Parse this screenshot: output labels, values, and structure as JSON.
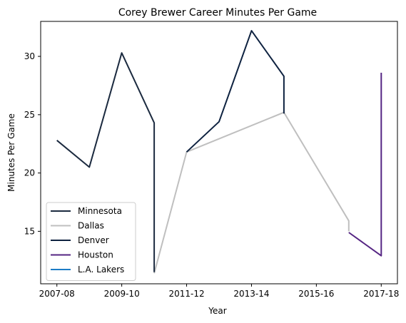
{
  "chart_data": {
    "type": "line",
    "title": "Corey Brewer Career Minutes Per Game",
    "xlabel": "Year",
    "ylabel": "Minutes Per Game",
    "x_ticks": [
      "2007-08",
      "2009-10",
      "2011-12",
      "2013-14",
      "2015-16",
      "2017-18"
    ],
    "y_ticks": [
      15,
      20,
      25,
      30
    ],
    "xlim": [
      -0.5,
      10.5
    ],
    "ylim": [
      10.5,
      33.0
    ],
    "legend_position": "lower left",
    "series": [
      {
        "name": "Minnesota",
        "color": "#1b2a3f",
        "points": [
          [
            0,
            22.8
          ],
          [
            1,
            20.5
          ],
          [
            2,
            30.3
          ],
          [
            3,
            24.3
          ],
          [
            3,
            11.5
          ]
        ]
      },
      {
        "name": "Dallas",
        "color": "#bfbfbf",
        "points": [
          [
            3,
            11.4
          ],
          [
            4,
            21.8
          ],
          [
            7,
            25.2
          ],
          [
            9,
            15.9
          ],
          [
            9,
            15.0
          ]
        ]
      },
      {
        "name": "Denver",
        "color": "#0e2240",
        "points": [
          [
            4,
            21.8
          ],
          [
            5,
            24.4
          ],
          [
            6,
            32.2
          ],
          [
            7,
            28.3
          ],
          [
            7,
            25.1
          ]
        ]
      },
      {
        "name": "Houston",
        "color": "#552583",
        "points": [
          [
            9,
            14.9
          ],
          [
            10,
            12.9
          ],
          [
            10,
            28.6
          ]
        ]
      },
      {
        "name": "L.A. Lakers",
        "color": "#1d7cc6",
        "points": []
      }
    ]
  }
}
